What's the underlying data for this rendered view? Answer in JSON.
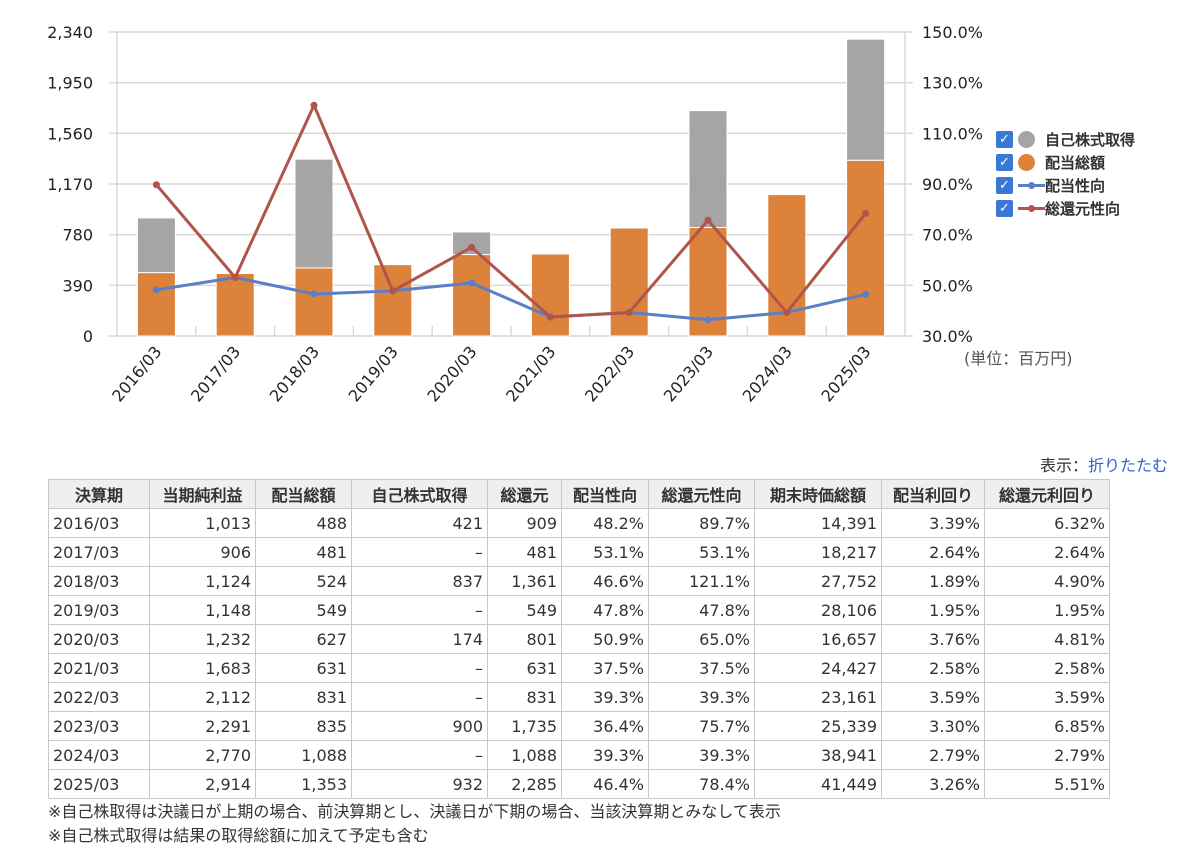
{
  "chart_data": {
    "type": "bar",
    "title": "",
    "unit_label": "(単位：百万円)",
    "categories": [
      "2016/03",
      "2017/03",
      "2018/03",
      "2019/03",
      "2020/03",
      "2021/03",
      "2022/03",
      "2023/03",
      "2024/03",
      "2025/03"
    ],
    "series": [
      {
        "name": "配当総額",
        "type": "bar",
        "stack": "return",
        "axis": "left",
        "color": "#dd823b",
        "values": [
          488,
          481,
          524,
          549,
          627,
          631,
          831,
          835,
          1088,
          1353
        ]
      },
      {
        "name": "自己株式取得",
        "type": "bar",
        "stack": "return",
        "axis": "left",
        "color": "#a5a5a5",
        "values": [
          421,
          0,
          837,
          0,
          174,
          0,
          0,
          900,
          0,
          932
        ]
      },
      {
        "name": "配当性向",
        "type": "line",
        "axis": "right",
        "color": "#5b7fc5",
        "values": [
          48.2,
          53.1,
          46.6,
          47.8,
          50.9,
          37.5,
          39.3,
          36.4,
          39.3,
          46.4
        ]
      },
      {
        "name": "総還元性向",
        "type": "line",
        "axis": "right",
        "color": "#b0554a",
        "values": [
          89.7,
          53.1,
          121.1,
          47.8,
          65.0,
          37.5,
          39.3,
          75.7,
          39.3,
          78.4
        ]
      }
    ],
    "ylim_left": [
      0,
      2340
    ],
    "yticks_left": [
      "0",
      "390",
      "780",
      "1,170",
      "1,560",
      "1,950",
      "2,340"
    ],
    "ylim_right": [
      30,
      150
    ],
    "yticks_right": [
      "30.0%",
      "50.0%",
      "70.0%",
      "90.0%",
      "110.0%",
      "130.0%",
      "150.0%"
    ],
    "grid": true,
    "legend_position": "right",
    "legend": [
      {
        "label": "自己株式取得",
        "icon": "dot",
        "color": "#a5a5a5",
        "checked": true
      },
      {
        "label": "配当総額",
        "icon": "dot",
        "color": "#dd823b",
        "checked": true
      },
      {
        "label": "配当性向",
        "icon": "line",
        "color": "#5b7fc5",
        "checked": true
      },
      {
        "label": "総還元性向",
        "icon": "line",
        "color": "#b0554a",
        "checked": true
      }
    ]
  },
  "toggle": {
    "prefix": "表示：",
    "link": "折りたたむ"
  },
  "table": {
    "headers": [
      "決算期",
      "当期純利益",
      "配当総額",
      "自己株式取得",
      "総還元",
      "配当性向",
      "総還元性向",
      "期末時価総額",
      "配当利回り",
      "総還元利回り"
    ],
    "rows": [
      [
        "2016/03",
        "1,013",
        "488",
        "421",
        "909",
        "48.2%",
        "89.7%",
        "14,391",
        "3.39%",
        "6.32%"
      ],
      [
        "2017/03",
        "906",
        "481",
        "–",
        "481",
        "53.1%",
        "53.1%",
        "18,217",
        "2.64%",
        "2.64%"
      ],
      [
        "2018/03",
        "1,124",
        "524",
        "837",
        "1,361",
        "46.6%",
        "121.1%",
        "27,752",
        "1.89%",
        "4.90%"
      ],
      [
        "2019/03",
        "1,148",
        "549",
        "–",
        "549",
        "47.8%",
        "47.8%",
        "28,106",
        "1.95%",
        "1.95%"
      ],
      [
        "2020/03",
        "1,232",
        "627",
        "174",
        "801",
        "50.9%",
        "65.0%",
        "16,657",
        "3.76%",
        "4.81%"
      ],
      [
        "2021/03",
        "1,683",
        "631",
        "–",
        "631",
        "37.5%",
        "37.5%",
        "24,427",
        "2.58%",
        "2.58%"
      ],
      [
        "2022/03",
        "2,112",
        "831",
        "–",
        "831",
        "39.3%",
        "39.3%",
        "23,161",
        "3.59%",
        "3.59%"
      ],
      [
        "2023/03",
        "2,291",
        "835",
        "900",
        "1,735",
        "36.4%",
        "75.7%",
        "25,339",
        "3.30%",
        "6.85%"
      ],
      [
        "2024/03",
        "2,770",
        "1,088",
        "–",
        "1,088",
        "39.3%",
        "39.3%",
        "38,941",
        "2.79%",
        "2.79%"
      ],
      [
        "2025/03",
        "2,914",
        "1,353",
        "932",
        "2,285",
        "46.4%",
        "78.4%",
        "41,449",
        "3.26%",
        "5.51%"
      ]
    ]
  },
  "notes": [
    "※自己株取得は決議日が上期の場合、前決算期とし、決議日が下期の場合、当該決算期とみなして表示",
    "※自己株式取得は結果の取得総額に加えて予定も含む"
  ]
}
